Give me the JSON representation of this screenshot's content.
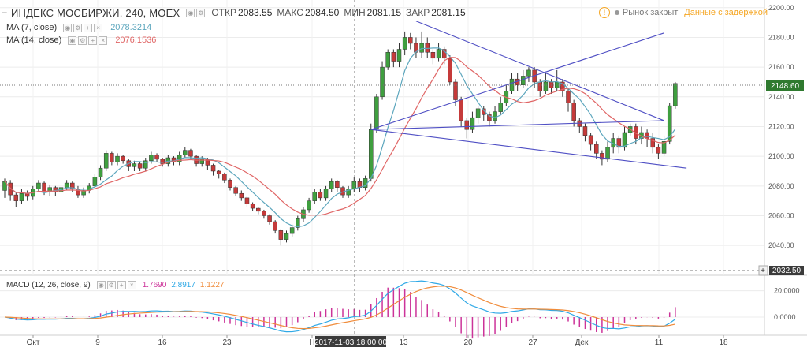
{
  "header": {
    "collapse_glyph": "–",
    "symbol": "ИНДЕКС МОСБИРЖИ, 240, MOEX",
    "open_label": "ОТКР",
    "open_value": "2083.55",
    "high_label": "МАКС",
    "high_value": "2084.50",
    "low_label": "МИН",
    "low_value": "2081.15",
    "close_label": "ЗАКР",
    "close_value": "2081.15",
    "market_status": "Рынок закрыт",
    "delay_notice": "Данные с задержкой",
    "warning_glyph": "!"
  },
  "indicators": {
    "ma7": {
      "label": "MA (7, close)",
      "value": "2078.3214"
    },
    "ma14": {
      "label": "MA (14, close)",
      "value": "2076.1536"
    }
  },
  "macd": {
    "label": "MACD (12, 26, close, 9)",
    "hist_value": "1.7690",
    "macd_value": "2.8917",
    "signal_value": "1.1227"
  },
  "price_axis": {
    "ticks": [
      "2200.00",
      "2180.00",
      "2160.00",
      "2140.00",
      "2120.00",
      "2100.00",
      "2080.00",
      "2060.00",
      "2040.00"
    ],
    "last_price": "2148.60",
    "crosshair_price": "2032.50",
    "crosshair_glyph": "+"
  },
  "macd_axis": {
    "ticks": [
      "20.0000",
      "0.0000"
    ]
  },
  "time_axis": {
    "labels": [
      "Окт",
      "9",
      "16",
      "23",
      "Н",
      "13",
      "20",
      "27",
      "Дек",
      "11",
      "18"
    ],
    "crosshair_time": "2017-11-03 18:00:00"
  },
  "colors": {
    "up": "#3f9f3f",
    "down": "#c53a3a",
    "ma7": "#5ca6bd",
    "ma14": "#e06666",
    "trend": "#4f4fc4",
    "macd": "#30a9e6",
    "signal": "#f08c3b",
    "hist": "#cc3399",
    "last_price_bg": "#2f7a2f",
    "delay": "#f5a623"
  },
  "chart_data": {
    "type": "candlestick",
    "x": [
      "Окт",
      "9",
      "16",
      "23",
      "Н",
      "13",
      "20",
      "27",
      "Дек",
      "11",
      "18"
    ],
    "price_range": [
      2030,
      2202
    ],
    "macd_range": [
      -12,
      30
    ],
    "candles": [
      [
        2077,
        2083,
        2072,
        2085
      ],
      [
        2082,
        2074,
        2070,
        2084
      ],
      [
        2074,
        2070,
        2066,
        2076
      ],
      [
        2070,
        2075,
        2068,
        2078
      ],
      [
        2075,
        2073,
        2070,
        2077
      ],
      [
        2073,
        2078,
        2071,
        2080
      ],
      [
        2078,
        2082,
        2076,
        2084
      ],
      [
        2082,
        2076,
        2074,
        2083
      ],
      [
        2076,
        2079,
        2073,
        2081
      ],
      [
        2079,
        2076,
        2073,
        2080
      ],
      [
        2076,
        2079,
        2074,
        2082
      ],
      [
        2079,
        2082,
        2077,
        2084
      ],
      [
        2082,
        2078,
        2076,
        2083
      ],
      [
        2078,
        2074,
        2072,
        2080
      ],
      [
        2074,
        2077,
        2072,
        2079
      ],
      [
        2077,
        2080,
        2075,
        2082
      ],
      [
        2080,
        2086,
        2078,
        2088
      ],
      [
        2086,
        2092,
        2084,
        2094
      ],
      [
        2092,
        2102,
        2090,
        2104
      ],
      [
        2102,
        2096,
        2094,
        2103
      ],
      [
        2096,
        2100,
        2094,
        2102
      ],
      [
        2100,
        2097,
        2095,
        2101
      ],
      [
        2097,
        2093,
        2090,
        2098
      ],
      [
        2093,
        2095,
        2090,
        2097
      ],
      [
        2095,
        2092,
        2090,
        2096
      ],
      [
        2092,
        2097,
        2090,
        2099
      ],
      [
        2097,
        2101,
        2095,
        2103
      ],
      [
        2101,
        2098,
        2096,
        2102
      ],
      [
        2098,
        2095,
        2093,
        2099
      ],
      [
        2095,
        2099,
        2093,
        2101
      ],
      [
        2099,
        2096,
        2094,
        2100
      ],
      [
        2096,
        2101,
        2094,
        2103
      ],
      [
        2101,
        2104,
        2099,
        2106
      ],
      [
        2104,
        2100,
        2098,
        2105
      ],
      [
        2100,
        2095,
        2093,
        2101
      ],
      [
        2095,
        2098,
        2093,
        2100
      ],
      [
        2098,
        2094,
        2091,
        2099
      ],
      [
        2094,
        2090,
        2087,
        2095
      ],
      [
        2090,
        2088,
        2085,
        2091
      ],
      [
        2088,
        2084,
        2082,
        2089
      ],
      [
        2084,
        2079,
        2077,
        2085
      ],
      [
        2079,
        2075,
        2073,
        2080
      ],
      [
        2075,
        2072,
        2070,
        2077
      ],
      [
        2072,
        2068,
        2066,
        2073
      ],
      [
        2068,
        2065,
        2063,
        2069
      ],
      [
        2065,
        2063,
        2061,
        2066
      ],
      [
        2063,
        2060,
        2058,
        2064
      ],
      [
        2060,
        2056,
        2054,
        2061
      ],
      [
        2056,
        2050,
        2048,
        2057
      ],
      [
        2050,
        2044,
        2040,
        2051
      ],
      [
        2044,
        2048,
        2042,
        2050
      ],
      [
        2048,
        2052,
        2046,
        2054
      ],
      [
        2052,
        2058,
        2050,
        2060
      ],
      [
        2058,
        2064,
        2056,
        2066
      ],
      [
        2064,
        2070,
        2062,
        2072
      ],
      [
        2070,
        2076,
        2068,
        2078
      ],
      [
        2076,
        2072,
        2070,
        2078
      ],
      [
        2072,
        2078,
        2070,
        2080
      ],
      [
        2078,
        2083,
        2076,
        2085
      ],
      [
        2083,
        2079,
        2076,
        2084
      ],
      [
        2079,
        2074,
        2072,
        2080
      ],
      [
        2074,
        2078,
        2072,
        2080
      ],
      [
        2078,
        2083,
        2076,
        2086
      ],
      [
        2083,
        2079,
        2076,
        2085
      ],
      [
        2079,
        2085,
        2077,
        2087
      ],
      [
        2085,
        2118,
        2083,
        2122
      ],
      [
        2118,
        2140,
        2116,
        2142
      ],
      [
        2140,
        2160,
        2138,
        2164
      ],
      [
        2160,
        2170,
        2158,
        2172
      ],
      [
        2170,
        2164,
        2160,
        2172
      ],
      [
        2164,
        2172,
        2160,
        2176
      ],
      [
        2172,
        2180,
        2168,
        2184
      ],
      [
        2180,
        2176,
        2172,
        2183
      ],
      [
        2176,
        2170,
        2166,
        2180
      ],
      [
        2170,
        2176,
        2166,
        2184
      ],
      [
        2176,
        2170,
        2166,
        2180
      ],
      [
        2170,
        2166,
        2162,
        2172
      ],
      [
        2166,
        2172,
        2164,
        2176
      ],
      [
        2172,
        2166,
        2162,
        2174
      ],
      [
        2166,
        2150,
        2148,
        2168
      ],
      [
        2150,
        2138,
        2134,
        2152
      ],
      [
        2138,
        2124,
        2120,
        2140
      ],
      [
        2124,
        2118,
        2112,
        2126
      ],
      [
        2118,
        2126,
        2116,
        2130
      ],
      [
        2126,
        2132,
        2122,
        2134
      ],
      [
        2132,
        2128,
        2124,
        2134
      ],
      [
        2128,
        2124,
        2120,
        2130
      ],
      [
        2124,
        2130,
        2122,
        2134
      ],
      [
        2130,
        2136,
        2128,
        2140
      ],
      [
        2136,
        2144,
        2134,
        2148
      ],
      [
        2144,
        2152,
        2142,
        2156
      ],
      [
        2152,
        2148,
        2144,
        2156
      ],
      [
        2148,
        2154,
        2146,
        2158
      ],
      [
        2154,
        2158,
        2150,
        2160
      ],
      [
        2158,
        2150,
        2146,
        2160
      ],
      [
        2150,
        2144,
        2140,
        2152
      ],
      [
        2144,
        2150,
        2142,
        2156
      ],
      [
        2150,
        2146,
        2142,
        2152
      ],
      [
        2146,
        2150,
        2144,
        2158
      ],
      [
        2150,
        2144,
        2140,
        2152
      ],
      [
        2144,
        2136,
        2130,
        2146
      ],
      [
        2136,
        2124,
        2120,
        2138
      ],
      [
        2124,
        2120,
        2116,
        2126
      ],
      [
        2120,
        2114,
        2110,
        2122
      ],
      [
        2114,
        2108,
        2104,
        2116
      ],
      [
        2108,
        2102,
        2098,
        2110
      ],
      [
        2102,
        2098,
        2094,
        2104
      ],
      [
        2098,
        2106,
        2096,
        2110
      ],
      [
        2106,
        2112,
        2102,
        2116
      ],
      [
        2112,
        2106,
        2102,
        2114
      ],
      [
        2106,
        2116,
        2104,
        2120
      ],
      [
        2116,
        2120,
        2114,
        2122
      ],
      [
        2120,
        2112,
        2108,
        2122
      ],
      [
        2112,
        2116,
        2108,
        2120
      ],
      [
        2116,
        2112,
        2106,
        2118
      ],
      [
        2112,
        2106,
        2102,
        2116
      ],
      [
        2106,
        2102,
        2098,
        2108
      ],
      [
        2102,
        2110,
        2100,
        2114
      ],
      [
        2110,
        2134,
        2108,
        2136
      ],
      [
        2134,
        2149,
        2132,
        2150
      ]
    ],
    "trend_lines": [
      {
        "from": [
          65,
          2118
        ],
        "to": [
          117,
          2124
        ]
      },
      {
        "from": [
          65,
          2118
        ],
        "to": [
          117,
          2183
        ]
      },
      {
        "from": [
          73,
          2191
        ],
        "to": [
          117,
          2124
        ]
      },
      {
        "from": [
          65,
          2118
        ],
        "to": [
          121,
          2092
        ]
      }
    ]
  }
}
